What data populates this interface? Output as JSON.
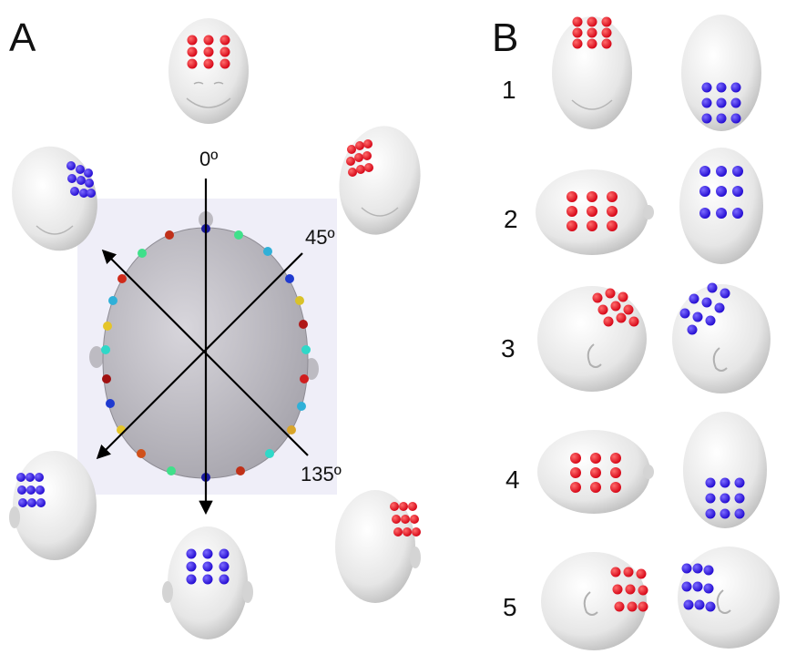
{
  "panels": {
    "a_label": "A",
    "b_label": "B"
  },
  "angles": {
    "a0": "0º",
    "a45": "45º",
    "a135": "135º"
  },
  "rows": [
    {
      "label": "1"
    },
    {
      "label": "2"
    },
    {
      "label": "3"
    },
    {
      "label": "4"
    },
    {
      "label": "5"
    }
  ],
  "colors": {
    "front_electrodes": "#e8121e",
    "back_electrodes": "#2a10e0",
    "head_fill": "#f0f0f0",
    "skull_fill": "#c6c4cc",
    "backdrop": "#efeef8"
  }
}
